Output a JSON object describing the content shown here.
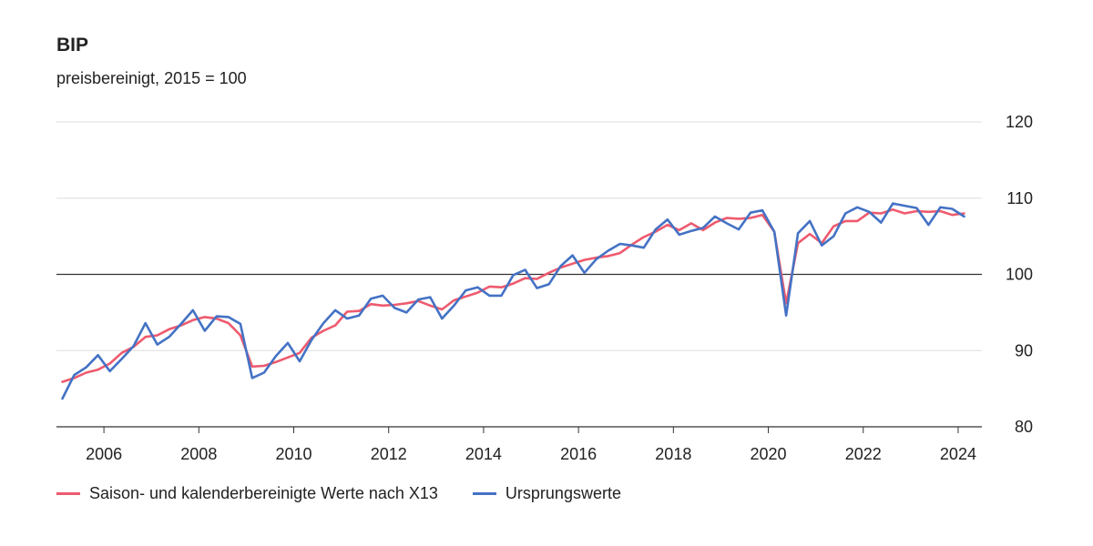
{
  "title": "BIP",
  "subtitle": "preisbereinigt, 2015 = 100",
  "legend": {
    "seasonal_label": "Saison- und kalenderbereinigte Werte nach X13",
    "original_label": "Ursprungswerte"
  },
  "colors": {
    "seasonal": "#ee5a6e",
    "original": "#4472c4",
    "grid": "#dddddd",
    "baseline": "#333333"
  },
  "chart_data": {
    "type": "line",
    "xlim": [
      2005,
      2024.5
    ],
    "ylim": [
      80,
      120
    ],
    "y_ticks": [
      80,
      90,
      100,
      110,
      120
    ],
    "x_ticks": [
      2006,
      2008,
      2010,
      2012,
      2014,
      2016,
      2018,
      2020,
      2022,
      2024
    ],
    "reference_line": 100,
    "grid": true,
    "legend_position": "bottom",
    "x": [
      2005.125,
      2005.375,
      2005.625,
      2005.875,
      2006.125,
      2006.375,
      2006.625,
      2006.875,
      2007.125,
      2007.375,
      2007.625,
      2007.875,
      2008.125,
      2008.375,
      2008.625,
      2008.875,
      2009.125,
      2009.375,
      2009.625,
      2009.875,
      2010.125,
      2010.375,
      2010.625,
      2010.875,
      2011.125,
      2011.375,
      2011.625,
      2011.875,
      2012.125,
      2012.375,
      2012.625,
      2012.875,
      2013.125,
      2013.375,
      2013.625,
      2013.875,
      2014.125,
      2014.375,
      2014.625,
      2014.875,
      2015.125,
      2015.375,
      2015.625,
      2015.875,
      2016.125,
      2016.375,
      2016.625,
      2016.875,
      2017.125,
      2017.375,
      2017.625,
      2017.875,
      2018.125,
      2018.375,
      2018.625,
      2018.875,
      2019.125,
      2019.375,
      2019.625,
      2019.875,
      2020.125,
      2020.375,
      2020.625,
      2020.875,
      2021.125,
      2021.375,
      2021.625,
      2021.875,
      2022.125,
      2022.375,
      2022.625,
      2022.875,
      2023.125,
      2023.375,
      2023.625,
      2023.875,
      2024.125
    ],
    "series": [
      {
        "name": "Saison- und kalenderbereinigte Werte nach X13",
        "values": [
          85.9,
          86.4,
          87.1,
          87.5,
          88.3,
          89.7,
          90.5,
          91.8,
          92.0,
          92.8,
          93.3,
          94.0,
          94.4,
          94.2,
          93.6,
          92.0,
          87.9,
          88.0,
          88.5,
          89.1,
          89.7,
          91.7,
          92.6,
          93.3,
          95.1,
          95.2,
          96.1,
          95.9,
          96.0,
          96.2,
          96.5,
          95.9,
          95.4,
          96.6,
          97.1,
          97.6,
          98.4,
          98.3,
          98.8,
          99.5,
          99.4,
          100.2,
          100.9,
          101.4,
          101.9,
          102.2,
          102.4,
          102.8,
          103.9,
          104.9,
          105.6,
          106.5,
          105.8,
          106.7,
          105.8,
          106.8,
          107.4,
          107.3,
          107.4,
          107.8,
          105.6,
          96.2,
          104.1,
          105.3,
          104.1,
          106.3,
          107.0,
          107.0,
          108.1,
          108.0,
          108.5,
          108.0,
          108.3,
          108.2,
          108.3,
          107.8,
          108.0
        ]
      },
      {
        "name": "Ursprungswerte",
        "values": [
          83.7,
          86.8,
          87.8,
          89.4,
          87.3,
          88.9,
          90.6,
          93.6,
          90.8,
          91.8,
          93.5,
          95.3,
          92.6,
          94.5,
          94.4,
          93.5,
          86.4,
          87.1,
          89.3,
          91.0,
          88.6,
          91.4,
          93.6,
          95.3,
          94.2,
          94.6,
          96.8,
          97.2,
          95.6,
          95.0,
          96.7,
          97.0,
          94.2,
          95.9,
          97.9,
          98.3,
          97.2,
          97.2,
          99.9,
          100.6,
          98.2,
          98.7,
          101.1,
          102.5,
          100.2,
          102.0,
          103.1,
          104.0,
          103.8,
          103.5,
          105.9,
          107.2,
          105.2,
          105.7,
          106.1,
          107.6,
          106.7,
          105.9,
          108.1,
          108.4,
          105.6,
          94.6,
          105.4,
          107.0,
          103.8,
          105.0,
          108.0,
          108.8,
          108.2,
          106.8,
          109.3,
          109.0,
          108.7,
          106.5,
          108.8,
          108.6,
          107.6
        ]
      }
    ]
  }
}
